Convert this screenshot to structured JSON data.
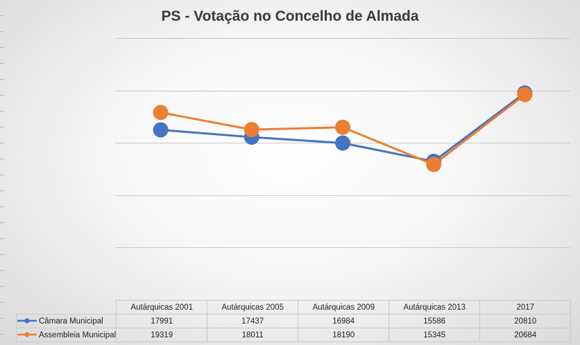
{
  "chart_data": {
    "type": "line",
    "title": "PS - Votação no Concelho de Almada",
    "categories": [
      "Autárquicas 2001",
      "Autárquicas 2005",
      "Autárquicas 2009",
      "Autárquicas 2013",
      "2017"
    ],
    "series": [
      {
        "name": "Câmara Municipal",
        "color": "#4472C4",
        "values": [
          17991,
          17437,
          16984,
          15586,
          20810
        ]
      },
      {
        "name": "Assembleia Municipal",
        "color": "#ED7D31",
        "values": [
          19319,
          18011,
          18190,
          15345,
          20684
        ]
      }
    ],
    "ylim": [
      5000,
      25000
    ],
    "grid": true,
    "y_tick_labels_visible": false,
    "legend": "data-table-bottom"
  }
}
